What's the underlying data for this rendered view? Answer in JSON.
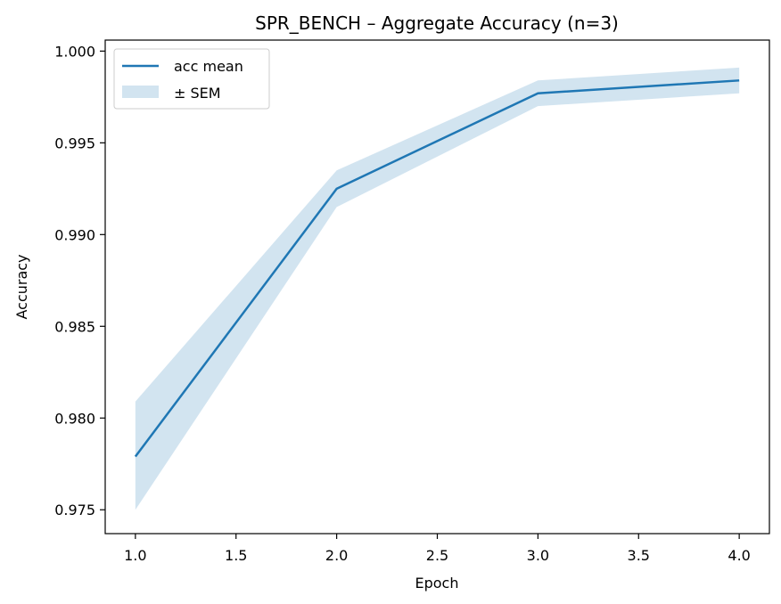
{
  "chart_data": {
    "type": "line",
    "title": "SPR_BENCH – Aggregate Accuracy (n=3)",
    "xlabel": "Epoch",
    "ylabel": "Accuracy",
    "xlim": [
      0.85,
      4.15
    ],
    "ylim": [
      0.9737,
      1.0006
    ],
    "xticks": [
      1.0,
      1.5,
      2.0,
      2.5,
      3.0,
      3.5,
      4.0
    ],
    "xtick_labels": [
      "1.0",
      "1.5",
      "2.0",
      "2.5",
      "3.0",
      "3.5",
      "4.0"
    ],
    "yticks": [
      0.975,
      0.98,
      0.985,
      0.99,
      0.995,
      1.0
    ],
    "ytick_labels": [
      "0.975",
      "0.980",
      "0.985",
      "0.990",
      "0.995",
      "1.000"
    ],
    "x": [
      1,
      2,
      3,
      4
    ],
    "series": [
      {
        "name": "acc mean",
        "values": [
          0.9779,
          0.9925,
          0.9977,
          0.9984
        ],
        "sem_lower": [
          0.975,
          0.9915,
          0.997,
          0.9977
        ],
        "sem_upper": [
          0.9809,
          0.9935,
          0.9984,
          0.9991
        ]
      }
    ],
    "legend": {
      "placement": "upper-left",
      "entries": [
        "acc mean",
        "± SEM"
      ]
    },
    "colors": {
      "line": "#1f77b4",
      "band": "#1f77b4"
    },
    "grid": false
  }
}
